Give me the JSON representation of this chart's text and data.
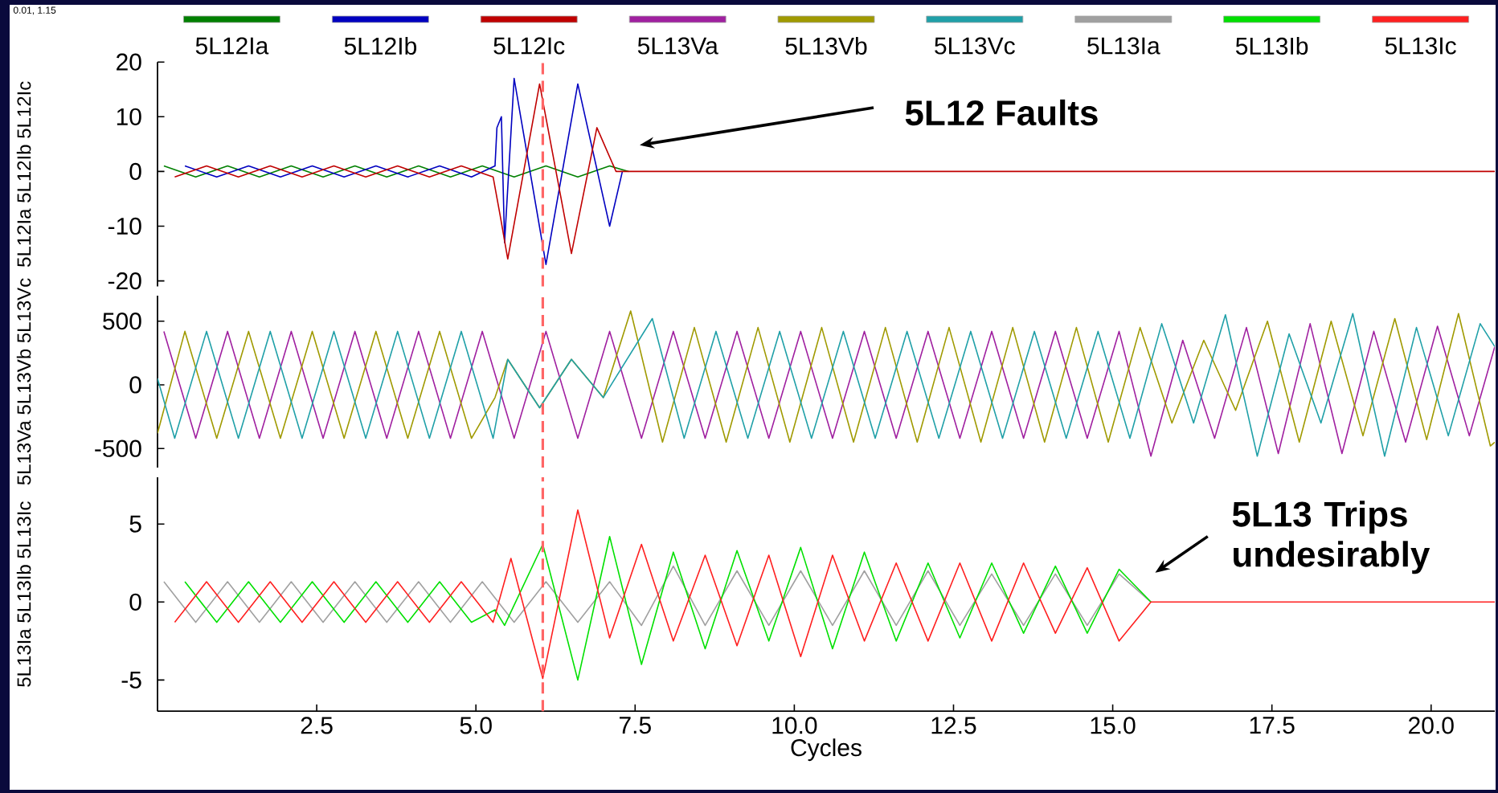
{
  "chart_data": [
    {
      "type": "line",
      "ylabel": "5L12Ia 5L12Ib 5L12Ic",
      "xlim": [
        0,
        21
      ],
      "ylim": [
        -21,
        20
      ],
      "yticks": [
        20,
        10,
        0,
        -10,
        -20
      ],
      "tick_labels": "y",
      "legend": "top",
      "annotations": [
        "0.01, 1.15",
        "5L12 Faults"
      ],
      "ref_lines": [
        {
          "axis": "x",
          "value": 6.05,
          "color": "#ff6666",
          "line_style": "dashed"
        }
      ],
      "series": [
        {
          "name": "5L12Ia",
          "color": "#008000",
          "x": [
            0.1,
            0.6,
            1.1,
            1.6,
            2.1,
            2.6,
            3.1,
            3.6,
            4.1,
            4.6,
            5.1,
            5.6,
            6.1,
            6.6,
            7.1,
            7.4
          ],
          "values": [
            1,
            -1,
            1,
            -1,
            1,
            -1,
            1,
            -1,
            1,
            -1,
            1,
            -1,
            1,
            -1,
            1,
            0
          ]
        },
        {
          "name": "5L12Ib",
          "color": "#0000c0",
          "x": [
            0.43,
            0.93,
            1.43,
            1.93,
            2.43,
            2.93,
            3.43,
            3.93,
            4.43,
            4.93,
            5.3,
            5.33,
            5.4,
            5.45,
            5.6,
            6.1,
            6.6,
            7.1,
            7.3
          ],
          "values": [
            1,
            -1,
            1,
            -1,
            1,
            -1,
            1,
            -1,
            1,
            -1,
            1,
            8,
            10,
            -13,
            17,
            -17,
            16,
            -10,
            0
          ]
        },
        {
          "name": "5L12Ic",
          "color": "#c00000",
          "x": [
            0.27,
            0.77,
            1.27,
            1.77,
            2.27,
            2.77,
            3.27,
            3.77,
            4.27,
            4.77,
            5.27,
            5.38,
            5.5,
            6.0,
            6.5,
            6.9,
            7.2,
            21
          ],
          "values": [
            -1,
            1,
            -1,
            1,
            -1,
            1,
            -1,
            1,
            -1,
            1,
            -1,
            -8,
            -16,
            16,
            -15,
            8,
            0,
            0
          ]
        }
      ]
    },
    {
      "type": "line",
      "ylabel": "5L13Va 5L13Vb 5L13Vc",
      "xlim": [
        0,
        21
      ],
      "ylim": [
        -650,
        700
      ],
      "yticks": [
        500,
        0,
        -500
      ],
      "tick_labels": "y",
      "legend": "top",
      "ref_lines": [
        {
          "axis": "x",
          "value": 6.05,
          "color": "#ff6666",
          "line_style": "dashed"
        }
      ],
      "series": [
        {
          "name": "5L13Va",
          "color": "#a020a0",
          "x": [
            0.1,
            0.6,
            1.1,
            1.6,
            2.1,
            2.6,
            3.1,
            3.6,
            4.1,
            4.6,
            5.1,
            5.6,
            6.1,
            6.6,
            7.1,
            7.6,
            8.1,
            8.6,
            9.1,
            9.6,
            10.1,
            10.6,
            11.1,
            11.6,
            12.1,
            12.6,
            13.1,
            13.6,
            14.1,
            14.6,
            15.1,
            15.6,
            16.1,
            16.6,
            17.1,
            17.6,
            18.1,
            18.6,
            19.1,
            19.6,
            20.1,
            20.6,
            21
          ],
          "values": [
            420,
            -420,
            420,
            -420,
            420,
            -420,
            420,
            -420,
            420,
            -420,
            420,
            -420,
            420,
            -420,
            420,
            -420,
            420,
            -420,
            420,
            -420,
            420,
            -420,
            420,
            -420,
            420,
            -420,
            420,
            -420,
            420,
            -420,
            420,
            -560,
            350,
            -420,
            450,
            -540,
            480,
            -540,
            420,
            -450,
            460,
            -400,
            300
          ]
        },
        {
          "name": "5L13Vb",
          "color": "#a09a00",
          "x": [
            0,
            0.43,
            0.93,
            1.43,
            1.93,
            2.43,
            2.93,
            3.43,
            3.93,
            4.43,
            4.93,
            5.3,
            5.5,
            6.0,
            6.5,
            7.0,
            7.43,
            7.93,
            8.43,
            8.93,
            9.43,
            9.93,
            10.43,
            10.93,
            11.43,
            11.93,
            12.43,
            12.93,
            13.43,
            13.93,
            14.43,
            14.93,
            15.43,
            15.93,
            16.43,
            16.93,
            17.43,
            17.93,
            18.43,
            18.93,
            19.43,
            19.93,
            20.43,
            20.93,
            21
          ],
          "values": [
            -380,
            420,
            -420,
            420,
            -420,
            420,
            -420,
            420,
            -420,
            420,
            -420,
            -100,
            200,
            -180,
            200,
            -100,
            580,
            -450,
            450,
            -450,
            450,
            -450,
            450,
            -450,
            450,
            -450,
            450,
            -450,
            450,
            -450,
            450,
            -450,
            450,
            -300,
            350,
            -200,
            500,
            -450,
            500,
            -400,
            520,
            -430,
            560,
            -480,
            -450
          ]
        },
        {
          "name": "5L13Vc",
          "color": "#20a0a8",
          "x": [
            0,
            0.27,
            0.77,
            1.27,
            1.77,
            2.27,
            2.77,
            3.27,
            3.77,
            4.27,
            4.77,
            5.27,
            5.5,
            6.0,
            6.5,
            7.0,
            7.77,
            8.27,
            8.77,
            9.27,
            9.77,
            10.27,
            10.77,
            11.27,
            11.77,
            12.27,
            12.77,
            13.27,
            13.77,
            14.27,
            14.77,
            15.27,
            15.77,
            16.27,
            16.77,
            17.27,
            17.77,
            18.27,
            18.77,
            19.27,
            19.77,
            20.27,
            20.77,
            21
          ],
          "values": [
            50,
            -420,
            420,
            -420,
            420,
            -420,
            420,
            -420,
            420,
            -420,
            420,
            -420,
            200,
            -180,
            200,
            -100,
            520,
            -420,
            420,
            -420,
            420,
            -420,
            420,
            -420,
            420,
            -420,
            420,
            -420,
            420,
            -420,
            420,
            -420,
            480,
            -300,
            550,
            -560,
            400,
            -300,
            560,
            -560,
            450,
            -400,
            480,
            300
          ]
        }
      ]
    },
    {
      "type": "line",
      "ylabel": "5L13Ia 5L13Ib 5L13Ic",
      "xlabel": "Cycles",
      "xlim": [
        0,
        21
      ],
      "ylim": [
        -7,
        8
      ],
      "yticks": [
        5,
        0,
        -5
      ],
      "xticks": [
        2.5,
        {
          "value": 5,
          "label": "5.0"
        },
        7.5,
        {
          "value": 10,
          "label": "10.0"
        },
        12.5,
        {
          "value": 15,
          "label": "15.0"
        },
        17.5,
        {
          "value": 20,
          "label": "20.0"
        }
      ],
      "legend": "top",
      "annotations": [
        "5L13 Trips undesirably"
      ],
      "ref_lines": [
        {
          "axis": "x",
          "value": 6.05,
          "color": "#ff6666",
          "line_style": "dashed"
        }
      ],
      "series": [
        {
          "name": "5L13Ia",
          "color": "#a0a0a0",
          "x": [
            0.1,
            0.6,
            1.1,
            1.6,
            2.1,
            2.6,
            3.1,
            3.6,
            4.1,
            4.6,
            5.1,
            5.6,
            6.1,
            6.6,
            7.1,
            7.6,
            8.1,
            8.6,
            9.1,
            9.6,
            10.1,
            10.6,
            11.1,
            11.6,
            12.1,
            12.6,
            13.1,
            13.6,
            14.1,
            14.6,
            15.1,
            15.6
          ],
          "values": [
            1.3,
            -1.3,
            1.3,
            -1.3,
            1.3,
            -1.3,
            1.3,
            -1.3,
            1.3,
            -1.3,
            1.3,
            -1.3,
            1.3,
            -1.3,
            1.3,
            -1.5,
            2.3,
            -1.5,
            2,
            -1.5,
            2,
            -1.5,
            2,
            -1.5,
            2,
            -1.5,
            1.8,
            -1.5,
            1.8,
            -1.5,
            1.8,
            0
          ]
        },
        {
          "name": "5L13Ib",
          "color": "#00e000",
          "x": [
            0.43,
            0.93,
            1.43,
            1.93,
            2.43,
            2.93,
            3.43,
            3.93,
            4.43,
            4.93,
            5.3,
            5.45,
            6.05,
            6.6,
            7.1,
            7.6,
            8.1,
            8.6,
            9.1,
            9.6,
            10.1,
            10.6,
            11.1,
            11.6,
            12.1,
            12.6,
            13.1,
            13.6,
            14.1,
            14.6,
            15.1,
            15.6
          ],
          "values": [
            1.3,
            -1.3,
            1.3,
            -1.3,
            1.3,
            -1.3,
            1.3,
            -1.3,
            1.3,
            -1.3,
            -0.5,
            -1.5,
            3.7,
            -5,
            4.2,
            -4,
            3.2,
            -3,
            3.3,
            -2.5,
            3.5,
            -3,
            3.2,
            -2.5,
            2.5,
            -2.3,
            2.5,
            -2,
            2.3,
            -2,
            2.1,
            0
          ]
        },
        {
          "name": "5L13Ic",
          "color": "#ff2020",
          "x": [
            0.27,
            0.77,
            1.27,
            1.77,
            2.27,
            2.77,
            3.27,
            3.77,
            4.27,
            4.77,
            5.27,
            5.55,
            6.05,
            6.6,
            7.1,
            7.6,
            8.1,
            8.6,
            9.1,
            9.6,
            10.1,
            10.6,
            11.1,
            11.6,
            12.1,
            12.6,
            13.1,
            13.6,
            14.1,
            14.6,
            15.1,
            15.6,
            21
          ],
          "values": [
            -1.3,
            1.3,
            -1.3,
            1.3,
            -1.3,
            1.3,
            -1.3,
            1.3,
            -1.3,
            1.3,
            -1.3,
            2.8,
            -4.9,
            5.9,
            -2.3,
            3.7,
            -2.5,
            3,
            -2.8,
            3,
            -3.5,
            3,
            -2.5,
            2.5,
            -2.5,
            2.5,
            -2.5,
            2.5,
            -2,
            2.2,
            -2.5,
            0,
            0
          ]
        }
      ]
    }
  ]
}
